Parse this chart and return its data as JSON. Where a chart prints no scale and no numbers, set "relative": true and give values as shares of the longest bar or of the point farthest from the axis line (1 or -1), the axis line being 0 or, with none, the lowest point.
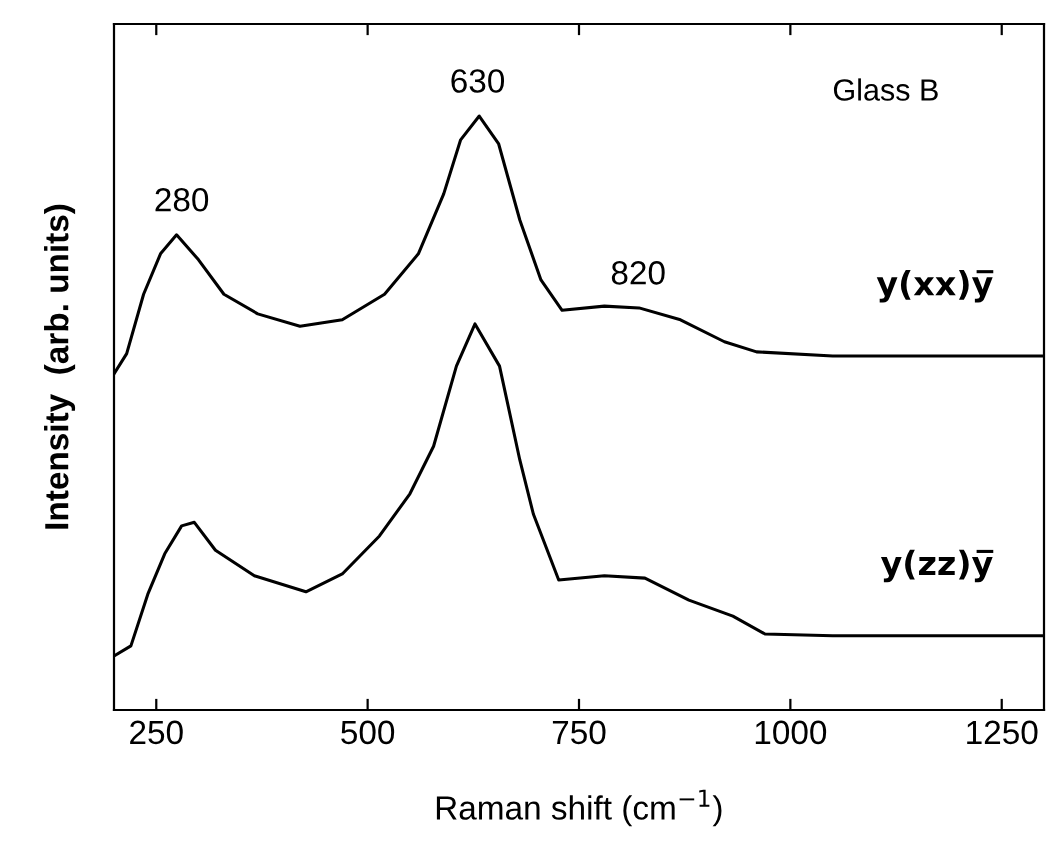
{
  "chart_data": {
    "type": "line",
    "relative": true,
    "xlabel": "Raman shift (cm$^{−1}$)",
    "ylabel": "Intensity  (arb. units)",
    "xlim": [
      200,
      1300
    ],
    "xticks": [
      250,
      500,
      750,
      1000,
      1250
    ],
    "grid": false,
    "legend": false,
    "marker": "none",
    "line_style": "solid",
    "series": [
      {
        "name": "y(xx)y̅",
        "color": "#000000",
        "x": [
          200,
          215,
          235,
          255,
          274,
          300,
          330,
          370,
          420,
          470,
          520,
          560,
          590,
          610,
          632,
          655,
          680,
          705,
          730,
          780,
          821,
          870,
          922,
          960,
          1050,
          1150,
          1300
        ],
        "values": [
          0.566,
          0.6,
          0.7,
          0.768,
          0.8,
          0.758,
          0.7,
          0.667,
          0.646,
          0.657,
          0.7,
          0.768,
          0.869,
          0.96,
          1.0,
          0.953,
          0.825,
          0.724,
          0.673,
          0.68,
          0.677,
          0.657,
          0.62,
          0.603,
          0.596,
          0.596,
          0.596
        ]
      },
      {
        "name": "y(zz)y̅",
        "color": "#000000",
        "x": [
          200,
          220,
          240,
          260,
          280,
          295,
          320,
          366,
          427,
          470,
          514,
          550,
          578,
          605,
          627,
          656,
          680,
          696,
          726,
          780,
          828,
          880,
          932,
          970,
          1050,
          1300
        ],
        "values": [
          0.091,
          0.108,
          0.195,
          0.263,
          0.31,
          0.316,
          0.269,
          0.226,
          0.199,
          0.229,
          0.293,
          0.364,
          0.444,
          0.579,
          0.65,
          0.579,
          0.421,
          0.33,
          0.219,
          0.226,
          0.222,
          0.185,
          0.158,
          0.128,
          0.125,
          0.125
        ]
      }
    ],
    "annotations": [
      {
        "text": "280",
        "x": 280,
        "y": 0.8
      },
      {
        "text": "630",
        "x": 630,
        "y": 1.0
      },
      {
        "text": "820",
        "x": 820,
        "y": 0.677
      },
      "Glass B"
    ]
  }
}
